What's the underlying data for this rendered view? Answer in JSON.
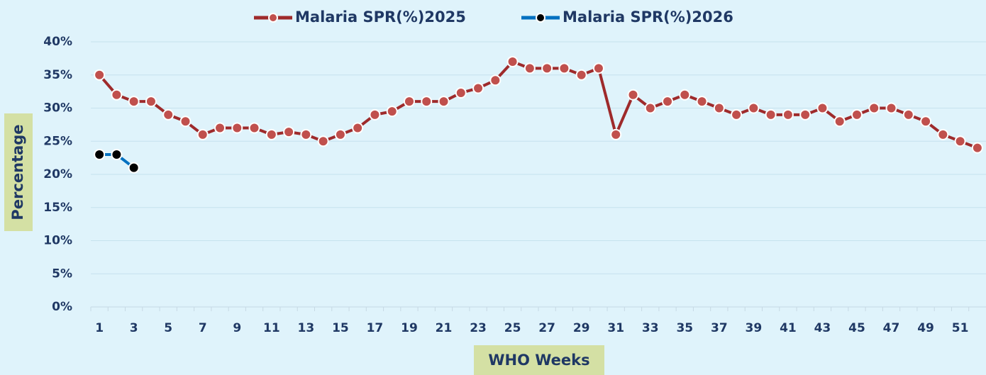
{
  "chart_data": {
    "type": "line",
    "x_label": "WHO Weeks",
    "y_label": "Percentage",
    "categories": [
      1,
      null,
      3,
      null,
      5,
      null,
      7,
      null,
      9,
      null,
      11,
      null,
      13,
      null,
      15,
      null,
      17,
      null,
      19,
      null,
      21,
      null,
      23,
      null,
      25,
      null,
      27,
      null,
      29,
      null,
      31,
      null,
      33,
      null,
      35,
      null,
      37,
      null,
      39,
      null,
      41,
      null,
      43,
      null,
      45,
      null,
      47,
      null,
      49,
      null,
      51,
      null
    ],
    "series": [
      {
        "name": "Malaria SPR(%)2025",
        "color": "#9e2a2b",
        "marker_color": "#c0504d",
        "values": [
          35,
          32,
          31,
          31,
          29,
          28,
          26,
          27,
          27,
          27,
          26,
          26.4,
          26,
          25,
          26,
          27,
          29,
          29.5,
          31,
          31,
          31,
          32.3,
          33,
          34.2,
          37,
          36,
          36,
          36,
          35,
          36,
          26,
          32,
          30,
          31,
          32,
          31,
          30,
          29,
          30,
          29,
          29,
          29,
          30,
          28,
          29,
          30,
          30,
          29,
          28,
          26,
          25,
          24
        ]
      },
      {
        "name": "Malaria SPR(%)2026",
        "color": "#0070c0",
        "marker_color": "#000000",
        "values": [
          23,
          23,
          21,
          null,
          null,
          null,
          null,
          null,
          null,
          null,
          null,
          null,
          null,
          null,
          null,
          null,
          null,
          null,
          null,
          null,
          null,
          null,
          null,
          null,
          null,
          null,
          null,
          null,
          null,
          null,
          null,
          null,
          null,
          null,
          null,
          null,
          null,
          null,
          null,
          null,
          null,
          null,
          null,
          null,
          null,
          null,
          null,
          null,
          null,
          null,
          null,
          null
        ]
      }
    ],
    "ylim": [
      0,
      40
    ],
    "yticks": [
      {
        "value": 0,
        "label": "0%"
      },
      {
        "value": 5,
        "label": "5%"
      },
      {
        "value": 10,
        "label": "10%"
      },
      {
        "value": 15,
        "label": "15%"
      },
      {
        "value": 20,
        "label": "20%"
      },
      {
        "value": 25,
        "label": "25%"
      },
      {
        "value": 30,
        "label": "30%"
      },
      {
        "value": 35,
        "label": "35%"
      },
      {
        "value": 40,
        "label": "40%"
      }
    ],
    "grid": true,
    "legend": "top"
  }
}
